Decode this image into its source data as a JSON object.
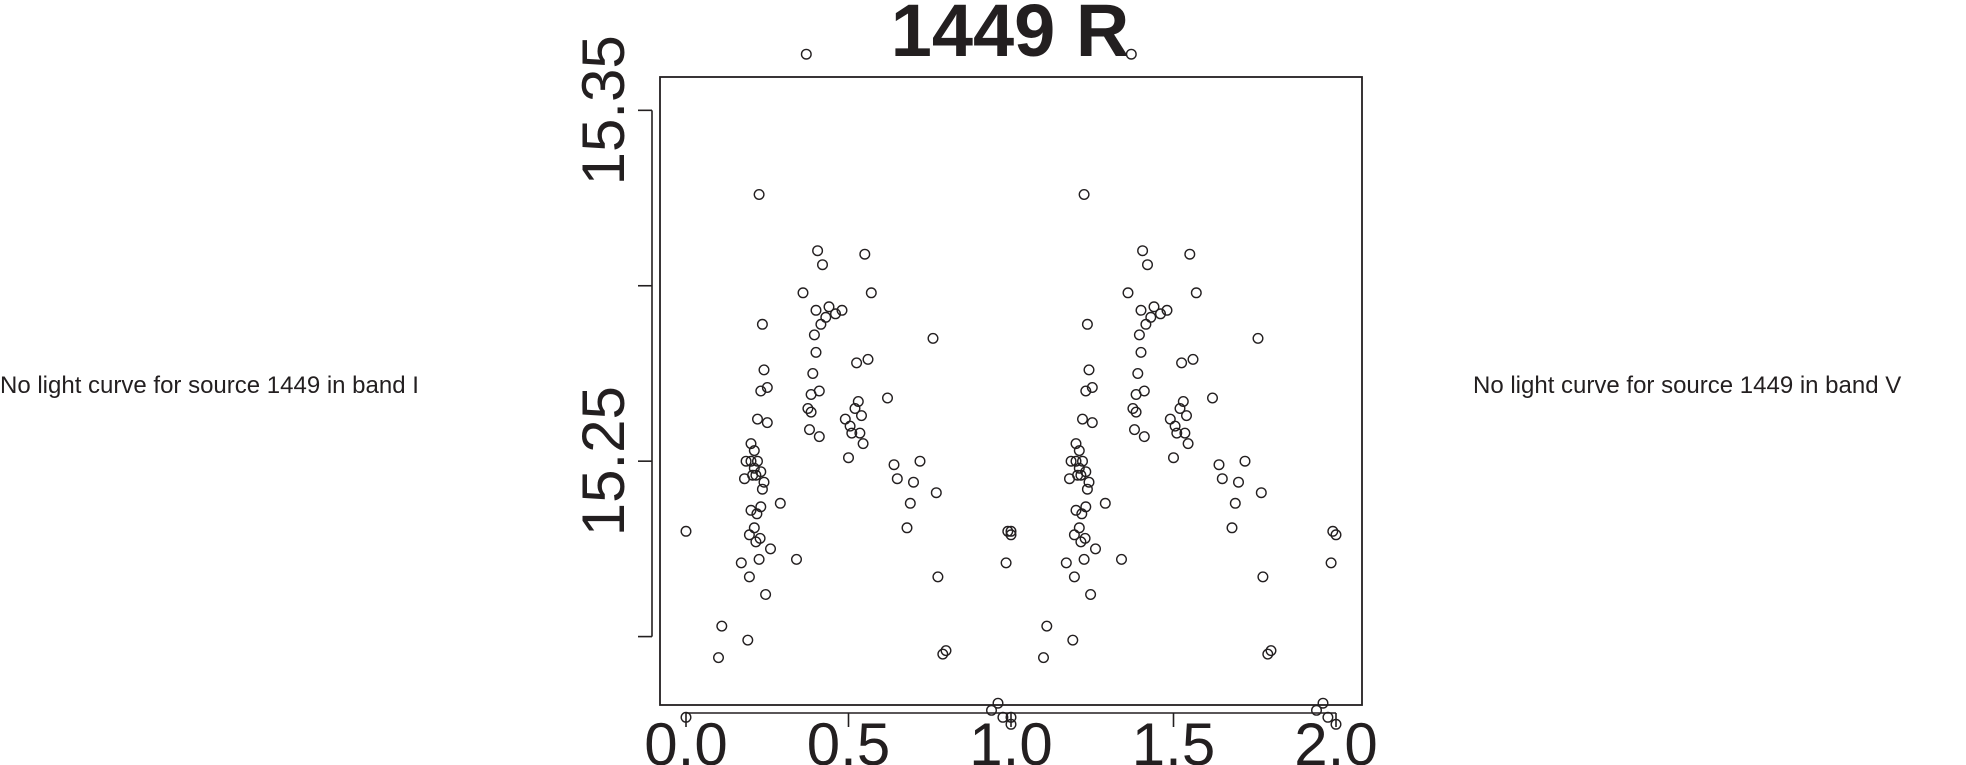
{
  "notes": {
    "left": "No light curve for source 1449 in band I",
    "right": "No light curve for source 1449 in band V"
  },
  "chart_data": {
    "type": "scatter",
    "title": "1449 R",
    "xlabel": "",
    "ylabel": "",
    "xlim": [
      -0.08,
      2.08
    ],
    "ylim": [
      15.3595,
      15.1805
    ],
    "y_inverted": true,
    "grid": false,
    "legend": "none",
    "marker": "open-circle",
    "x_ticks": [
      0.0,
      0.5,
      1.0,
      1.5,
      2.0
    ],
    "x_tick_labels": [
      "0.0",
      "0.5",
      "1.0",
      "1.5",
      "2.0"
    ],
    "y_ticks": [
      15.2,
      15.25,
      15.3,
      15.35
    ],
    "y_tick_labels": [
      "",
      "15.25",
      "",
      "15.35"
    ],
    "series": [
      {
        "points": [
          [
            0.0,
            15.177
          ],
          [
            0.0,
            15.23
          ],
          [
            0.1,
            15.194
          ],
          [
            0.11,
            15.203
          ],
          [
            0.17,
            15.221
          ],
          [
            0.18,
            15.245
          ],
          [
            0.185,
            15.25
          ],
          [
            0.19,
            15.199
          ],
          [
            0.195,
            15.217
          ],
          [
            0.195,
            15.229
          ],
          [
            0.2,
            15.255
          ],
          [
            0.2,
            15.236
          ],
          [
            0.2,
            15.25
          ],
          [
            0.205,
            15.246
          ],
          [
            0.21,
            15.253
          ],
          [
            0.21,
            15.248
          ],
          [
            0.215,
            15.246
          ],
          [
            0.22,
            15.25
          ],
          [
            0.22,
            15.262
          ],
          [
            0.23,
            15.247
          ],
          [
            0.235,
            15.289
          ],
          [
            0.21,
            15.231
          ],
          [
            0.215,
            15.227
          ],
          [
            0.218,
            15.235
          ],
          [
            0.225,
            15.222
          ],
          [
            0.228,
            15.228
          ],
          [
            0.23,
            15.237
          ],
          [
            0.235,
            15.242
          ],
          [
            0.24,
            15.244
          ],
          [
            0.245,
            15.212
          ],
          [
            0.25,
            15.261
          ],
          [
            0.26,
            15.225
          ],
          [
            0.23,
            15.27
          ],
          [
            0.24,
            15.276
          ],
          [
            0.25,
            15.271
          ],
          [
            0.225,
            15.326
          ],
          [
            0.29,
            15.238
          ],
          [
            0.34,
            15.222
          ],
          [
            0.36,
            15.298
          ],
          [
            0.37,
            15.366
          ],
          [
            0.375,
            15.265
          ],
          [
            0.38,
            15.259
          ],
          [
            0.385,
            15.269
          ],
          [
            0.385,
            15.264
          ],
          [
            0.39,
            15.275
          ],
          [
            0.395,
            15.286
          ],
          [
            0.4,
            15.293
          ],
          [
            0.4,
            15.281
          ],
          [
            0.405,
            15.31
          ],
          [
            0.41,
            15.257
          ],
          [
            0.41,
            15.27
          ],
          [
            0.415,
            15.289
          ],
          [
            0.42,
            15.306
          ],
          [
            0.43,
            15.291
          ],
          [
            0.44,
            15.294
          ],
          [
            0.46,
            15.292
          ],
          [
            0.48,
            15.293
          ],
          [
            0.49,
            15.262
          ],
          [
            0.5,
            15.251
          ],
          [
            0.505,
            15.26
          ],
          [
            0.51,
            15.258
          ],
          [
            0.52,
            15.265
          ],
          [
            0.525,
            15.278
          ],
          [
            0.53,
            15.267
          ],
          [
            0.535,
            15.258
          ],
          [
            0.54,
            15.263
          ],
          [
            0.545,
            15.255
          ],
          [
            0.55,
            15.309
          ],
          [
            0.56,
            15.279
          ],
          [
            0.57,
            15.298
          ],
          [
            0.62,
            15.268
          ],
          [
            0.64,
            15.249
          ],
          [
            0.65,
            15.245
          ],
          [
            0.68,
            15.231
          ],
          [
            0.69,
            15.238
          ],
          [
            0.7,
            15.244
          ],
          [
            0.72,
            15.25
          ],
          [
            0.76,
            15.285
          ],
          [
            0.77,
            15.241
          ],
          [
            0.775,
            15.217
          ],
          [
            0.79,
            15.195
          ],
          [
            0.8,
            15.196
          ],
          [
            0.94,
            15.179
          ],
          [
            0.96,
            15.181
          ],
          [
            0.975,
            15.177
          ],
          [
            0.985,
            15.221
          ],
          [
            0.99,
            15.23
          ],
          [
            1.0,
            15.175
          ],
          [
            1.0,
            15.229
          ]
        ]
      }
    ]
  }
}
